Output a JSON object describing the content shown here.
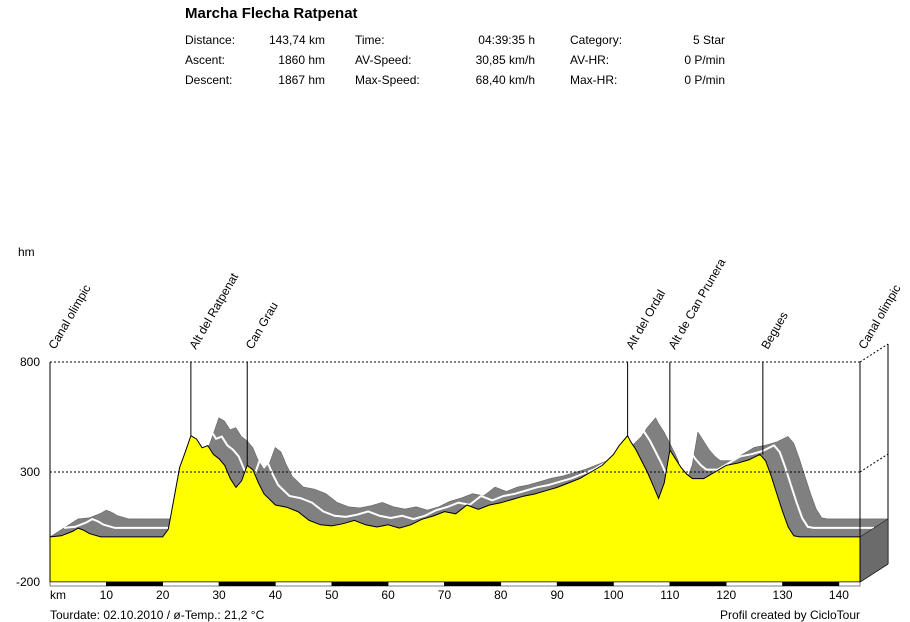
{
  "title": "Marcha Flecha Ratpenat",
  "stats": [
    {
      "label": "Distance:",
      "value": "143,74 km"
    },
    {
      "label": "Ascent:",
      "value": "1860 hm"
    },
    {
      "label": "Descent:",
      "value": "1867 hm"
    },
    {
      "label": "Time:",
      "value": "04:39:35 h"
    },
    {
      "label": "AV-Speed:",
      "value": "30,85 km/h"
    },
    {
      "label": "Max-Speed:",
      "value": "68,40 km/h"
    },
    {
      "label": "Category:",
      "value": "5 Star"
    },
    {
      "label": "AV-HR:",
      "value": "0 P/min"
    },
    {
      "label": "Max-HR:",
      "value": "0 P/min"
    }
  ],
  "footer": {
    "tourdate": "Tourdate: 02.10.2010  /  ø-Temp.: 21,2 °C",
    "credit": "Profil created by CicloTour"
  },
  "colors": {
    "fill": "#ffff00",
    "shadow": "#808080",
    "grid": "#000000"
  },
  "chart_data": {
    "type": "area",
    "xlabel": "km",
    "ylabel": "hm",
    "xlim": [
      0,
      143.74
    ],
    "ylim": [
      -200,
      800
    ],
    "xticks": [
      10,
      20,
      30,
      40,
      50,
      60,
      70,
      80,
      90,
      100,
      110,
      120,
      130,
      140
    ],
    "yticks": [
      800,
      300,
      -200
    ],
    "gridlines_y": [
      800,
      300
    ],
    "landmarks": [
      {
        "name": "Canal olimpic",
        "km": 0
      },
      {
        "name": "Alt del Ratpenat",
        "km": 25
      },
      {
        "name": "Can Grau",
        "km": 35
      },
      {
        "name": "Alt del Ordal",
        "km": 102.5
      },
      {
        "name": "Alt de Can Prunera",
        "km": 110
      },
      {
        "name": "Begues",
        "km": 126.5
      },
      {
        "name": "Canal olimpic",
        "km": 143.74
      }
    ],
    "x": [
      0,
      2,
      4,
      5,
      6,
      7,
      9,
      12,
      16,
      20,
      21,
      22,
      23,
      24,
      25,
      26,
      27,
      28,
      29,
      30,
      31,
      32,
      33,
      34,
      35,
      36,
      37,
      38,
      40,
      42,
      44,
      46,
      48,
      50,
      52,
      54,
      56,
      58,
      60,
      62,
      64,
      66,
      68,
      70,
      72,
      74,
      76,
      78,
      80,
      82,
      84,
      86,
      88,
      90,
      92,
      94,
      96,
      98,
      100,
      101,
      102,
      102.5,
      103,
      104,
      105,
      106,
      107,
      108,
      109,
      110,
      111,
      112,
      113,
      114,
      116,
      118,
      120,
      122,
      124,
      126,
      127,
      128,
      129,
      130,
      131,
      132,
      133,
      134,
      136,
      138,
      140,
      143.74
    ],
    "elevation": [
      5,
      10,
      30,
      45,
      35,
      20,
      5,
      5,
      5,
      5,
      40,
      180,
      320,
      390,
      465,
      450,
      410,
      420,
      380,
      360,
      330,
      270,
      230,
      260,
      330,
      310,
      250,
      200,
      150,
      140,
      120,
      80,
      60,
      55,
      65,
      80,
      60,
      50,
      60,
      45,
      60,
      85,
      100,
      120,
      110,
      150,
      130,
      150,
      160,
      175,
      190,
      200,
      215,
      230,
      250,
      270,
      300,
      330,
      380,
      420,
      450,
      465,
      440,
      400,
      350,
      300,
      240,
      180,
      250,
      400,
      360,
      320,
      290,
      270,
      270,
      300,
      330,
      340,
      355,
      380,
      350,
      280,
      200,
      120,
      50,
      10,
      5,
      5,
      5,
      5,
      5,
      5
    ]
  }
}
